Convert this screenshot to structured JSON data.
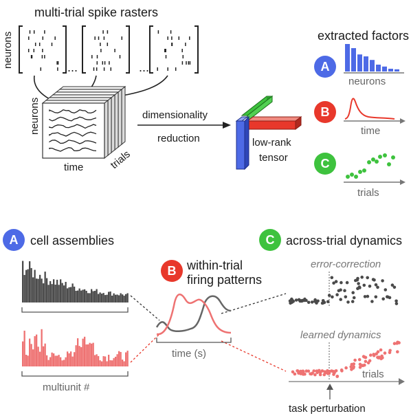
{
  "title_rasters": "multi-trial spike rasters",
  "label_neurons_raster": "neurons",
  "ellipsis": "...",
  "tensor_labels": {
    "neurons": "neurons",
    "time": "time",
    "trials": "trials"
  },
  "arrow_label": {
    "line1": "dimensionality",
    "line2": "reduction"
  },
  "lowrank_label": {
    "line1": "low-rank",
    "line2": "tensor"
  },
  "factors_title": "extracted factors",
  "factors": [
    {
      "badge": "A",
      "color": "#4d6ae6",
      "axis_label": "neurons",
      "bars": [
        1.0,
        0.85,
        0.62,
        0.55,
        0.42,
        0.25,
        0.18,
        0.1,
        0.08
      ]
    },
    {
      "badge": "B",
      "color": "#e8382b",
      "axis_label": "time"
    },
    {
      "badge": "C",
      "color": "#3ec23e",
      "axis_label": "trials"
    }
  ],
  "bottom": {
    "a_title": "cell assemblies",
    "b_title_line1": "within-trial",
    "b_title_line2": "firing patterns",
    "c_title": "across-trial dynamics",
    "xlabel_multiunit": "multiunit #",
    "xlabel_time": "time (s)",
    "xlabel_trials": "trials",
    "error_correction": "error-correction",
    "learned_dynamics": "learned dynamics",
    "task_perturbation": "task perturbation"
  },
  "colors": {
    "blue": "#4d6ae6",
    "red": "#e8382b",
    "green": "#3ec23e",
    "dark": "#4a4a4a",
    "pink": "#ee7272",
    "gray": "#808080"
  }
}
